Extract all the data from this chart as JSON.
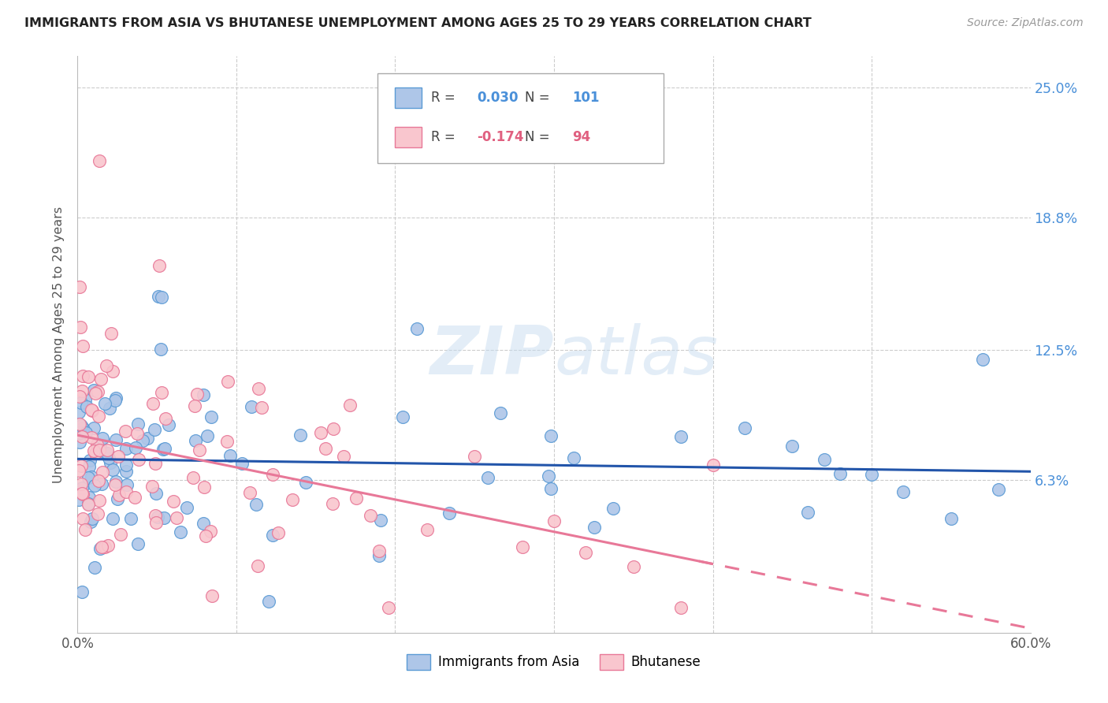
{
  "title": "IMMIGRANTS FROM ASIA VS BHUTANESE UNEMPLOYMENT AMONG AGES 25 TO 29 YEARS CORRELATION CHART",
  "source": "Source: ZipAtlas.com",
  "ylabel_ticks": [
    "6.3%",
    "12.5%",
    "18.8%",
    "25.0%"
  ],
  "ylabel_label": "Unemployment Among Ages 25 to 29 years",
  "legend1_label": "Immigrants from Asia",
  "legend2_label": "Bhutanese",
  "r1": "0.030",
  "n1": "101",
  "r2": "-0.174",
  "n2": "94",
  "color_blue_fill": "#aec6e8",
  "color_blue_edge": "#5b9bd5",
  "color_pink_fill": "#f9c6ce",
  "color_pink_edge": "#e87898",
  "color_line_blue": "#2255aa",
  "color_line_pink": "#e87898",
  "color_blue_text": "#4a90d9",
  "color_pink_text": "#e06080",
  "watermark_color": "#c8ddf0",
  "grid_color": "#cccccc",
  "xlim": [
    0.0,
    0.6
  ],
  "ylim": [
    -0.01,
    0.265
  ],
  "ytick_vals": [
    0.063,
    0.125,
    0.188,
    0.25
  ],
  "xtick_vals": [
    0.0,
    0.1,
    0.2,
    0.3,
    0.4,
    0.5,
    0.6
  ]
}
